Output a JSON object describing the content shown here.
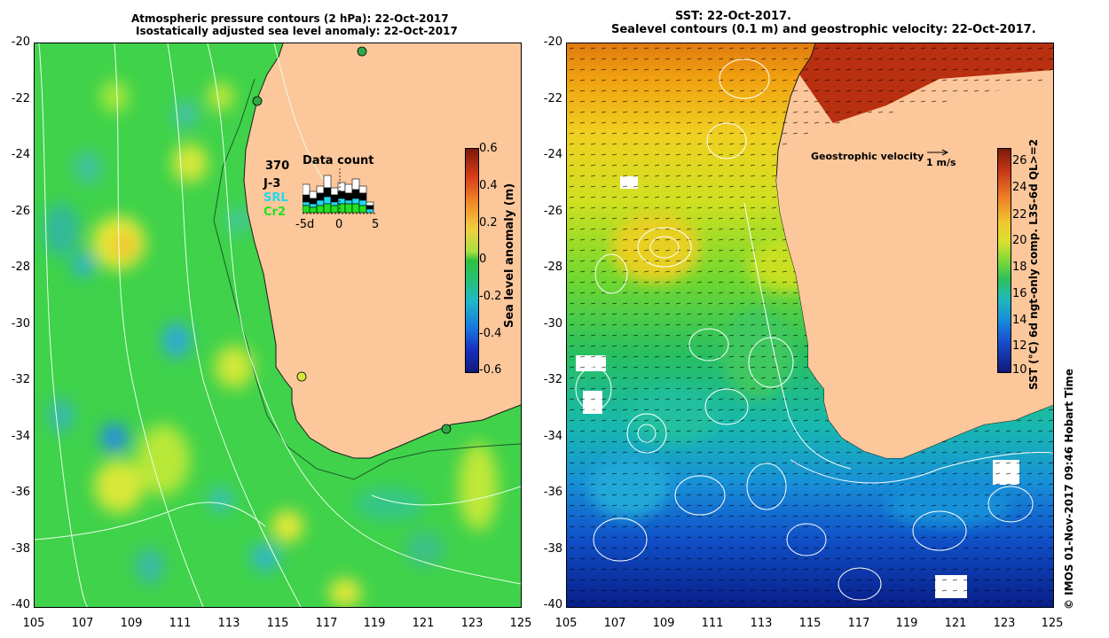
{
  "left_panel": {
    "title_line1": "Atmospheric pressure contours (2 hPa): 22-Oct-2017",
    "title_line2": "Isostatically adjusted sea level anomaly: 22-Oct-2017",
    "colorbar": {
      "label": "Sea level anomaly (m)",
      "ticks": [
        "0.6",
        "0.4",
        "0.2",
        "0",
        "-0.2",
        "-0.4",
        "-0.6"
      ]
    },
    "inset": {
      "title": "Data count",
      "max_label": "370",
      "series": [
        {
          "name": "J-3",
          "color": "#000000"
        },
        {
          "name": "SRL",
          "color": "#22d8f0"
        },
        {
          "name": "Cr2",
          "color": "#22e022"
        }
      ],
      "x_ticks": [
        "-5d",
        "0",
        "5"
      ]
    }
  },
  "right_panel": {
    "title_line1": "SST: 22-Oct-2017.",
    "title_line2": "Sealevel contours (0.1 m) and geostrophic velocity: 22-Oct-2017.",
    "colorbar": {
      "label": "SST (°C) 6d ngt-only comp. L3S-6d QL>=2",
      "ticks": [
        "26",
        "24",
        "22",
        "20",
        "18",
        "16",
        "14",
        "12",
        "10"
      ]
    },
    "velocity_legend": {
      "label": "Geostrophic velocity",
      "scale": "1 m/s"
    }
  },
  "axes": {
    "y_ticks": [
      "-20",
      "-22",
      "-24",
      "-26",
      "-28",
      "-30",
      "-32",
      "-34",
      "-36",
      "-38",
      "-40"
    ],
    "x_ticks": [
      "105",
      "107",
      "109",
      "111",
      "113",
      "115",
      "117",
      "119",
      "121",
      "123",
      "125"
    ]
  },
  "footer": "© IMOS 01-Nov-2017 09:46 Hobart Time"
}
